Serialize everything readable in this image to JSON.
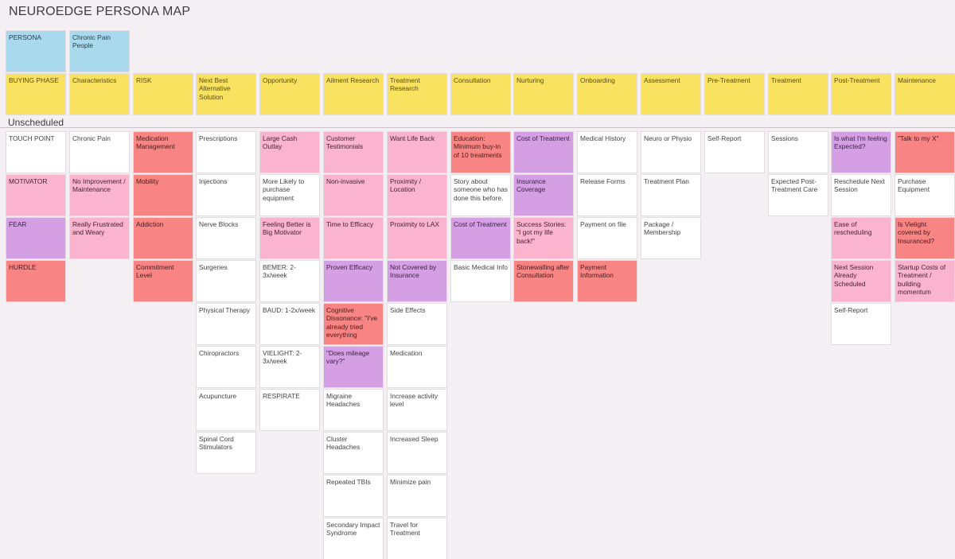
{
  "board": {
    "title": "NEUROEDGE PERSONA MAP",
    "lane_label": "Unscheduled"
  },
  "colors": {
    "blue": "#a9d9ec",
    "yellow": "#f9e25f",
    "white": "#ffffff",
    "pink": "#fab4cd",
    "red": "#f88583",
    "purple": "#d49fe3",
    "background": "#f4eff3"
  },
  "persona": {
    "label": "PERSONA",
    "value": "Chronic Pain People"
  },
  "headers": [
    "BUYING PHASE",
    "Characteristics",
    "RISK",
    "Next Best Alternative Solution",
    "Opportunity",
    "Ailment Research",
    "Treatment Research",
    "Consultation",
    "Nurturing",
    "Onboarding",
    "Assessment",
    "Pre-Treatment",
    "Treatment",
    "Post-Treatment",
    "Maintenance"
  ],
  "columns": [
    [
      {
        "text": "TOUCH POINT",
        "color": "white"
      },
      {
        "text": "MOTIVATOR",
        "color": "pink"
      },
      {
        "text": "FEAR",
        "color": "purple"
      },
      {
        "text": "HURDLE",
        "color": "red"
      }
    ],
    [
      {
        "text": "Chronic Pain",
        "color": "white"
      },
      {
        "text": "No Improvement / Maintenance",
        "color": "pink"
      },
      {
        "text": "Really Frustrated and Weary",
        "color": "pink"
      }
    ],
    [
      {
        "text": "Medication Management",
        "color": "red"
      },
      {
        "text": "Mobility",
        "color": "red"
      },
      {
        "text": "Addiction",
        "color": "red"
      },
      {
        "text": "Commitment Level",
        "color": "red"
      }
    ],
    [
      {
        "text": "Prescriptions",
        "color": "white"
      },
      {
        "text": "Injections",
        "color": "white"
      },
      {
        "text": "Nerve Blocks",
        "color": "white"
      },
      {
        "text": "Surgeries",
        "color": "white"
      },
      {
        "text": "Physical Therapy",
        "color": "white"
      },
      {
        "text": "Chiropractors",
        "color": "white"
      },
      {
        "text": "Acupuncture",
        "color": "white"
      },
      {
        "text": "Spinal Cord Stimulators",
        "color": "white"
      }
    ],
    [
      {
        "text": "Large Cash Outlay",
        "color": "pink"
      },
      {
        "text": "More Likely to purchase equipment",
        "color": "white"
      },
      {
        "text": "Feeling Better is Big Motivator",
        "color": "pink"
      },
      {
        "text": "BEMER: 2-3x/week",
        "color": "white"
      },
      {
        "text": "BAUD: 1-2x/week",
        "color": "white"
      },
      {
        "text": "VIELIGHT: 2-3x/week",
        "color": "white"
      },
      {
        "text": "RESPIRATE",
        "color": "white"
      }
    ],
    [
      {
        "text": "Customer Testimonials",
        "color": "pink"
      },
      {
        "text": "Non-invasive",
        "color": "pink"
      },
      {
        "text": "Time to Efficacy",
        "color": "pink"
      },
      {
        "text": "Proven Efficacy",
        "color": "purple"
      },
      {
        "text": "Cognitive Dissonance: \"I've already tried everything",
        "color": "red"
      },
      {
        "text": "\"Does mileage vary?\"",
        "color": "purple"
      },
      {
        "text": "Migraine Headaches",
        "color": "white"
      },
      {
        "text": "Cluster Headaches",
        "color": "white"
      },
      {
        "text": "Repeated TBIs",
        "color": "white"
      },
      {
        "text": "Secondary Impact Syndrome",
        "color": "white"
      }
    ],
    [
      {
        "text": "Want Life Back",
        "color": "pink"
      },
      {
        "text": "Proximity / Location",
        "color": "pink"
      },
      {
        "text": "Proximity to LAX",
        "color": "pink"
      },
      {
        "text": "Not Covered by Insurance",
        "color": "purple"
      },
      {
        "text": "Side Effects",
        "color": "white"
      },
      {
        "text": "Medication",
        "color": "white"
      },
      {
        "text": "Increase activity level",
        "color": "white"
      },
      {
        "text": "Increased Sleep",
        "color": "white"
      },
      {
        "text": "Minimize pain",
        "color": "white"
      },
      {
        "text": "Travel for Treatment",
        "color": "white"
      }
    ],
    [
      {
        "text": "Education: Minimum buy-in of 10 treatments",
        "color": "red"
      },
      {
        "text": "Story about someone who has done this before.",
        "color": "white"
      },
      {
        "text": "Cost of Treatment",
        "color": "purple"
      },
      {
        "text": "Basic Medical Info",
        "color": "white"
      }
    ],
    [
      {
        "text": "Cost of Treatment",
        "color": "purple"
      },
      {
        "text": "Insurance Coverage",
        "color": "purple"
      },
      {
        "text": "Success Stories: \"I got my life back!\"",
        "color": "pink"
      },
      {
        "text": "Stonewalling after Consultation",
        "color": "red"
      }
    ],
    [
      {
        "text": "Medical History",
        "color": "white"
      },
      {
        "text": "Release Forms",
        "color": "white"
      },
      {
        "text": "Payment on file",
        "color": "white"
      },
      {
        "text": "Payment Information",
        "color": "red"
      }
    ],
    [
      {
        "text": "Neuro or Physio",
        "color": "white"
      },
      {
        "text": "Treatment Plan",
        "color": "white"
      },
      {
        "text": "Package / Membership",
        "color": "white"
      }
    ],
    [
      {
        "text": "Self-Report",
        "color": "white"
      }
    ],
    [
      {
        "text": "Sessions",
        "color": "white"
      },
      {
        "text": "Expected Post-Treatment Care",
        "color": "white"
      }
    ],
    [
      {
        "text": "Is what I'm feeling Expected?",
        "color": "purple"
      },
      {
        "text": "Reschedule Next Session",
        "color": "white"
      },
      {
        "text": "Ease of rescheduling",
        "color": "pink"
      },
      {
        "text": "Next Session Already Scheduled",
        "color": "pink"
      },
      {
        "text": "Self-Report",
        "color": "white"
      }
    ],
    [
      {
        "text": "\"Talk to my X\"",
        "color": "red"
      },
      {
        "text": "Purchase Equipment",
        "color": "white"
      },
      {
        "text": "Is Vielight covered by Insuranced?",
        "color": "red"
      },
      {
        "text": "Startup Costs of Treatment / building momentum",
        "color": "pink"
      }
    ]
  ]
}
